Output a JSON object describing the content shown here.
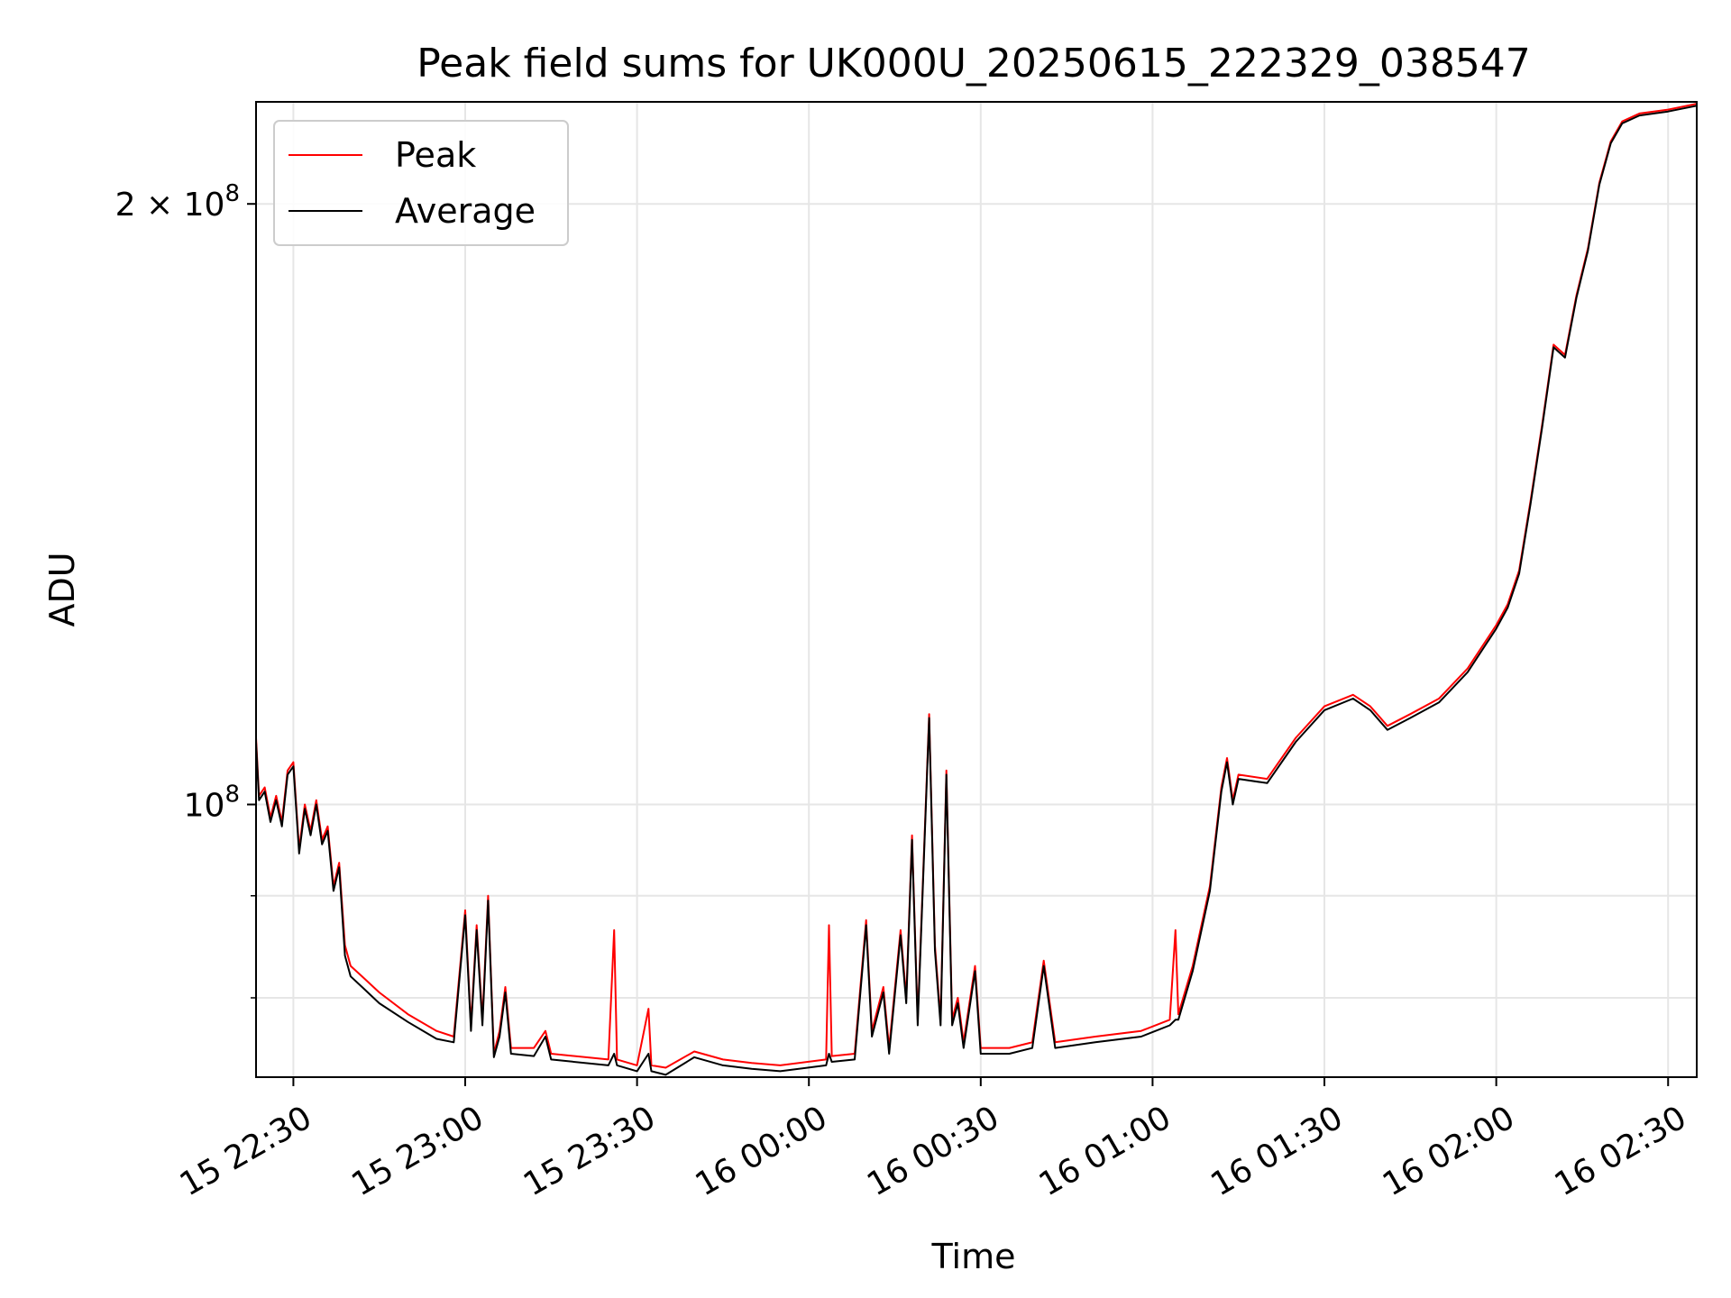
{
  "chart_data": {
    "type": "line",
    "title": "Peak field sums for UK000U_20250615_222329_038547",
    "xlabel": "Time",
    "ylabel": "ADU",
    "y_scale": "log",
    "grid": true,
    "legend_position": "top-left",
    "xlim": [
      "2025-06-15 22:23:29",
      "2025-06-16 02:35:00"
    ],
    "ylim": [
      73000000,
      225000000
    ],
    "x_ticks": [
      {
        "value": "2025-06-15 22:30",
        "label": "15 22:30"
      },
      {
        "value": "2025-06-15 23:00",
        "label": "15 23:00"
      },
      {
        "value": "2025-06-15 23:30",
        "label": "15 23:30"
      },
      {
        "value": "2025-06-16 00:00",
        "label": "16 00:00"
      },
      {
        "value": "2025-06-16 00:30",
        "label": "16 00:30"
      },
      {
        "value": "2025-06-16 01:00",
        "label": "16 01:00"
      },
      {
        "value": "2025-06-16 01:30",
        "label": "16 01:30"
      },
      {
        "value": "2025-06-16 02:00",
        "label": "16 02:00"
      },
      {
        "value": "2025-06-16 02:30",
        "label": "16 02:30"
      }
    ],
    "y_major_ticks": [
      {
        "value": 100000000,
        "label_base": "10",
        "label_exp": "8",
        "label_mult": ""
      },
      {
        "value": 200000000,
        "label_base": "10",
        "label_exp": "8",
        "label_mult": "2 × "
      }
    ],
    "y_minor_ticks": [
      80000000,
      90000000
    ],
    "series": [
      {
        "name": "Peak",
        "color": "#ff0000",
        "points": [
          [
            "2025-06-15 22:23:29",
            108000000
          ],
          [
            "2025-06-15 22:24:00",
            101000000
          ],
          [
            "2025-06-15 22:25:00",
            102000000
          ],
          [
            "2025-06-15 22:26:00",
            98500000
          ],
          [
            "2025-06-15 22:27:00",
            101000000
          ],
          [
            "2025-06-15 22:28:00",
            98000000
          ],
          [
            "2025-06-15 22:29:00",
            104000000
          ],
          [
            "2025-06-15 22:30:00",
            105000000
          ],
          [
            "2025-06-15 22:31:00",
            95000000
          ],
          [
            "2025-06-15 22:32:00",
            100000000
          ],
          [
            "2025-06-15 22:33:00",
            97000000
          ],
          [
            "2025-06-15 22:34:00",
            100500000
          ],
          [
            "2025-06-15 22:35:00",
            96000000
          ],
          [
            "2025-06-15 22:36:00",
            97500000
          ],
          [
            "2025-06-15 22:37:00",
            91000000
          ],
          [
            "2025-06-15 22:38:00",
            93500000
          ],
          [
            "2025-06-15 22:39:00",
            85000000
          ],
          [
            "2025-06-15 22:40:00",
            83000000
          ],
          [
            "2025-06-15 22:42:00",
            82000000
          ],
          [
            "2025-06-15 22:45:00",
            80500000
          ],
          [
            "2025-06-15 22:50:00",
            78500000
          ],
          [
            "2025-06-15 22:55:00",
            77000000
          ],
          [
            "2025-06-15 22:58:00",
            76500000
          ],
          [
            "2025-06-15 23:00:00",
            88500000
          ],
          [
            "2025-06-15 23:01:00",
            77500000
          ],
          [
            "2025-06-15 23:02:00",
            87000000
          ],
          [
            "2025-06-15 23:03:00",
            78000000
          ],
          [
            "2025-06-15 23:04:00",
            90000000
          ],
          [
            "2025-06-15 23:05:00",
            75000000
          ],
          [
            "2025-06-15 23:06:00",
            77000000
          ],
          [
            "2025-06-15 23:07:00",
            81000000
          ],
          [
            "2025-06-15 23:08:00",
            75500000
          ],
          [
            "2025-06-15 23:12:00",
            75500000
          ],
          [
            "2025-06-15 23:14:00",
            77000000
          ],
          [
            "2025-06-15 23:15:00",
            75000000
          ],
          [
            "2025-06-15 23:25:00",
            74500000
          ],
          [
            "2025-06-15 23:26:00",
            86500000
          ],
          [
            "2025-06-15 23:26:30",
            74500000
          ],
          [
            "2025-06-15 23:30:00",
            74000000
          ],
          [
            "2025-06-15 23:32:00",
            79000000
          ],
          [
            "2025-06-15 23:32:30",
            74000000
          ],
          [
            "2025-06-15 23:35:00",
            73800000
          ],
          [
            "2025-06-15 23:40:00",
            75200000
          ],
          [
            "2025-06-15 23:45:00",
            74500000
          ],
          [
            "2025-06-15 23:50:00",
            74200000
          ],
          [
            "2025-06-15 23:55:00",
            74000000
          ],
          [
            "2025-06-16 00:03:00",
            74500000
          ],
          [
            "2025-06-16 00:03:30",
            87000000
          ],
          [
            "2025-06-16 00:04:00",
            74800000
          ],
          [
            "2025-06-16 00:08:00",
            75000000
          ],
          [
            "2025-06-16 00:10:00",
            87500000
          ],
          [
            "2025-06-16 00:11:00",
            77000000
          ],
          [
            "2025-06-16 00:13:00",
            81000000
          ],
          [
            "2025-06-16 00:14:00",
            75500000
          ],
          [
            "2025-06-16 00:16:00",
            86500000
          ],
          [
            "2025-06-16 00:17:00",
            80000000
          ],
          [
            "2025-06-16 00:18:00",
            96500000
          ],
          [
            "2025-06-16 00:19:00",
            78000000
          ],
          [
            "2025-06-16 00:21:00",
            111000000
          ],
          [
            "2025-06-16 00:22:00",
            85000000
          ],
          [
            "2025-06-16 00:23:00",
            78000000
          ],
          [
            "2025-06-16 00:24:00",
            104000000
          ],
          [
            "2025-06-16 00:25:00",
            78000000
          ],
          [
            "2025-06-16 00:26:00",
            80000000
          ],
          [
            "2025-06-16 00:27:00",
            76000000
          ],
          [
            "2025-06-16 00:29:00",
            83000000
          ],
          [
            "2025-06-16 00:30:00",
            75500000
          ],
          [
            "2025-06-16 00:35:00",
            75500000
          ],
          [
            "2025-06-16 00:39:00",
            76000000
          ],
          [
            "2025-06-16 00:41:00",
            83500000
          ],
          [
            "2025-06-16 00:43:00",
            76000000
          ],
          [
            "2025-06-16 00:50:00",
            76500000
          ],
          [
            "2025-06-16 00:58:00",
            77000000
          ],
          [
            "2025-06-16 01:03:00",
            78000000
          ],
          [
            "2025-06-16 01:04:00",
            86500000
          ],
          [
            "2025-06-16 01:04:30",
            78500000
          ],
          [
            "2025-06-16 01:07:00",
            83000000
          ],
          [
            "2025-06-16 01:10:00",
            91000000
          ],
          [
            "2025-06-16 01:12:00",
            102000000
          ],
          [
            "2025-06-16 01:13:00",
            105500000
          ],
          [
            "2025-06-16 01:14:00",
            100500000
          ],
          [
            "2025-06-16 01:15:00",
            103500000
          ],
          [
            "2025-06-16 01:20:00",
            103000000
          ],
          [
            "2025-06-16 01:25:00",
            108000000
          ],
          [
            "2025-06-16 01:30:00",
            112000000
          ],
          [
            "2025-06-16 01:35:00",
            113500000
          ],
          [
            "2025-06-16 01:38:00",
            112000000
          ],
          [
            "2025-06-16 01:41:00",
            109500000
          ],
          [
            "2025-06-16 01:45:00",
            111000000
          ],
          [
            "2025-06-16 01:50:00",
            113000000
          ],
          [
            "2025-06-16 01:55:00",
            117000000
          ],
          [
            "2025-06-16 02:00:00",
            123000000
          ],
          [
            "2025-06-16 02:02:00",
            126000000
          ],
          [
            "2025-06-16 02:04:00",
            131000000
          ],
          [
            "2025-06-16 02:06:00",
            142000000
          ],
          [
            "2025-06-16 02:08:00",
            155000000
          ],
          [
            "2025-06-16 02:10:00",
            170000000
          ],
          [
            "2025-06-16 02:12:00",
            168000000
          ],
          [
            "2025-06-16 02:14:00",
            180000000
          ],
          [
            "2025-06-16 02:16:00",
            190000000
          ],
          [
            "2025-06-16 02:18:00",
            205000000
          ],
          [
            "2025-06-16 02:20:00",
            215000000
          ],
          [
            "2025-06-16 02:22:00",
            220000000
          ],
          [
            "2025-06-16 02:25:00",
            222000000
          ],
          [
            "2025-06-16 02:30:00",
            223000000
          ],
          [
            "2025-06-16 02:35:00",
            224500000
          ]
        ]
      },
      {
        "name": "Average",
        "color": "#000000",
        "points": [
          [
            "2025-06-15 22:23:29",
            107500000
          ],
          [
            "2025-06-15 22:24:00",
            100500000
          ],
          [
            "2025-06-15 22:25:00",
            101500000
          ],
          [
            "2025-06-15 22:26:00",
            98000000
          ],
          [
            "2025-06-15 22:27:00",
            100500000
          ],
          [
            "2025-06-15 22:28:00",
            97500000
          ],
          [
            "2025-06-15 22:29:00",
            103500000
          ],
          [
            "2025-06-15 22:30:00",
            104500000
          ],
          [
            "2025-06-15 22:31:00",
            94500000
          ],
          [
            "2025-06-15 22:32:00",
            99500000
          ],
          [
            "2025-06-15 22:33:00",
            96500000
          ],
          [
            "2025-06-15 22:34:00",
            100000000
          ],
          [
            "2025-06-15 22:35:00",
            95500000
          ],
          [
            "2025-06-15 22:36:00",
            97000000
          ],
          [
            "2025-06-15 22:37:00",
            90500000
          ],
          [
            "2025-06-15 22:38:00",
            93000000
          ],
          [
            "2025-06-15 22:39:00",
            84000000
          ],
          [
            "2025-06-15 22:40:00",
            82000000
          ],
          [
            "2025-06-15 22:42:00",
            81000000
          ],
          [
            "2025-06-15 22:45:00",
            79500000
          ],
          [
            "2025-06-15 22:50:00",
            77800000
          ],
          [
            "2025-06-15 22:55:00",
            76300000
          ],
          [
            "2025-06-15 22:58:00",
            76000000
          ],
          [
            "2025-06-15 23:00:00",
            88000000
          ],
          [
            "2025-06-15 23:01:00",
            77000000
          ],
          [
            "2025-06-15 23:02:00",
            86500000
          ],
          [
            "2025-06-15 23:03:00",
            77500000
          ],
          [
            "2025-06-15 23:04:00",
            89500000
          ],
          [
            "2025-06-15 23:05:00",
            74700000
          ],
          [
            "2025-06-15 23:06:00",
            76500000
          ],
          [
            "2025-06-15 23:07:00",
            80500000
          ],
          [
            "2025-06-15 23:08:00",
            75000000
          ],
          [
            "2025-06-15 23:12:00",
            74800000
          ],
          [
            "2025-06-15 23:14:00",
            76500000
          ],
          [
            "2025-06-15 23:15:00",
            74500000
          ],
          [
            "2025-06-15 23:25:00",
            74000000
          ],
          [
            "2025-06-15 23:26:00",
            75000000
          ],
          [
            "2025-06-15 23:26:30",
            74000000
          ],
          [
            "2025-06-15 23:30:00",
            73500000
          ],
          [
            "2025-06-15 23:32:00",
            75000000
          ],
          [
            "2025-06-15 23:32:30",
            73500000
          ],
          [
            "2025-06-15 23:35:00",
            73200000
          ],
          [
            "2025-06-15 23:40:00",
            74700000
          ],
          [
            "2025-06-15 23:45:00",
            74000000
          ],
          [
            "2025-06-15 23:50:00",
            73700000
          ],
          [
            "2025-06-15 23:55:00",
            73500000
          ],
          [
            "2025-06-16 00:03:00",
            74000000
          ],
          [
            "2025-06-16 00:03:30",
            75000000
          ],
          [
            "2025-06-16 00:04:00",
            74300000
          ],
          [
            "2025-06-16 00:08:00",
            74500000
          ],
          [
            "2025-06-16 00:10:00",
            87000000
          ],
          [
            "2025-06-16 00:11:00",
            76500000
          ],
          [
            "2025-06-16 00:13:00",
            80500000
          ],
          [
            "2025-06-16 00:14:00",
            75000000
          ],
          [
            "2025-06-16 00:16:00",
            86000000
          ],
          [
            "2025-06-16 00:17:00",
            79500000
          ],
          [
            "2025-06-16 00:18:00",
            96000000
          ],
          [
            "2025-06-16 00:19:00",
            77500000
          ],
          [
            "2025-06-16 00:21:00",
            110500000
          ],
          [
            "2025-06-16 00:22:00",
            84500000
          ],
          [
            "2025-06-16 00:23:00",
            77500000
          ],
          [
            "2025-06-16 00:24:00",
            103500000
          ],
          [
            "2025-06-16 00:25:00",
            77500000
          ],
          [
            "2025-06-16 00:26:00",
            79500000
          ],
          [
            "2025-06-16 00:27:00",
            75500000
          ],
          [
            "2025-06-16 00:29:00",
            82500000
          ],
          [
            "2025-06-16 00:30:00",
            75000000
          ],
          [
            "2025-06-16 00:35:00",
            75000000
          ],
          [
            "2025-06-16 00:39:00",
            75500000
          ],
          [
            "2025-06-16 00:41:00",
            83000000
          ],
          [
            "2025-06-16 00:43:00",
            75500000
          ],
          [
            "2025-06-16 00:50:00",
            76000000
          ],
          [
            "2025-06-16 00:58:00",
            76500000
          ],
          [
            "2025-06-16 01:03:00",
            77500000
          ],
          [
            "2025-06-16 01:04:00",
            78000000
          ],
          [
            "2025-06-16 01:04:30",
            78000000
          ],
          [
            "2025-06-16 01:07:00",
            82500000
          ],
          [
            "2025-06-16 01:10:00",
            90500000
          ],
          [
            "2025-06-16 01:12:00",
            101500000
          ],
          [
            "2025-06-16 01:13:00",
            105000000
          ],
          [
            "2025-06-16 01:14:00",
            100000000
          ],
          [
            "2025-06-16 01:15:00",
            103000000
          ],
          [
            "2025-06-16 01:20:00",
            102500000
          ],
          [
            "2025-06-16 01:25:00",
            107500000
          ],
          [
            "2025-06-16 01:30:00",
            111500000
          ],
          [
            "2025-06-16 01:35:00",
            113000000
          ],
          [
            "2025-06-16 01:38:00",
            111500000
          ],
          [
            "2025-06-16 01:41:00",
            109000000
          ],
          [
            "2025-06-16 01:45:00",
            110500000
          ],
          [
            "2025-06-16 01:50:00",
            112500000
          ],
          [
            "2025-06-16 01:55:00",
            116500000
          ],
          [
            "2025-06-16 02:00:00",
            122500000
          ],
          [
            "2025-06-16 02:02:00",
            125500000
          ],
          [
            "2025-06-16 02:04:00",
            130500000
          ],
          [
            "2025-06-16 02:06:00",
            141500000
          ],
          [
            "2025-06-16 02:08:00",
            154500000
          ],
          [
            "2025-06-16 02:10:00",
            169500000
          ],
          [
            "2025-06-16 02:12:00",
            167500000
          ],
          [
            "2025-06-16 02:14:00",
            179500000
          ],
          [
            "2025-06-16 02:16:00",
            189500000
          ],
          [
            "2025-06-16 02:18:00",
            204500000
          ],
          [
            "2025-06-16 02:20:00",
            214500000
          ],
          [
            "2025-06-16 02:22:00",
            219500000
          ],
          [
            "2025-06-16 02:25:00",
            221500000
          ],
          [
            "2025-06-16 02:30:00",
            222500000
          ],
          [
            "2025-06-16 02:35:00",
            224000000
          ]
        ]
      }
    ]
  }
}
